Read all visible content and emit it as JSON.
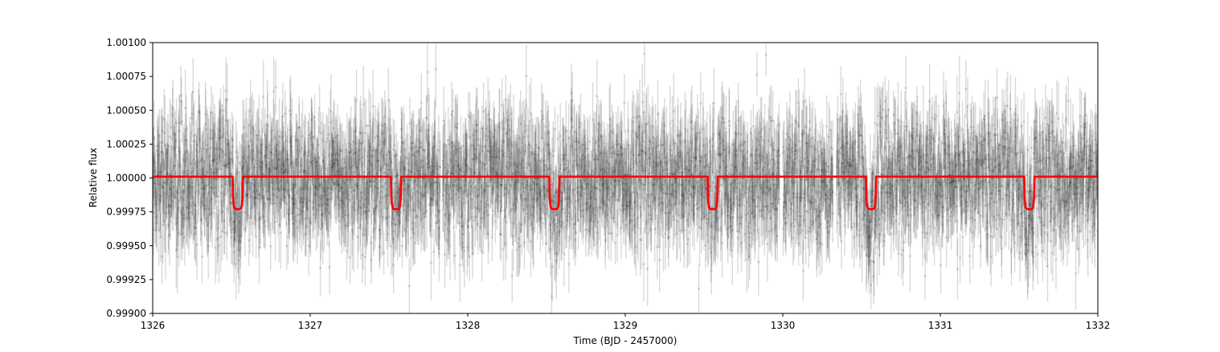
{
  "chart_data": {
    "type": "scatter",
    "title": "",
    "xlabel": "Time (BJD - 2457000)",
    "ylabel": "Relative flux",
    "xlim": [
      1326,
      1332
    ],
    "ylim": [
      0.999,
      1.001
    ],
    "x_ticks": [
      1326,
      1327,
      1328,
      1329,
      1330,
      1331,
      1332
    ],
    "x_tick_labels": [
      "1326",
      "1327",
      "1328",
      "1329",
      "1330",
      "1331",
      "1332"
    ],
    "y_ticks": [
      0.999,
      0.99925,
      0.9995,
      0.99975,
      1.0,
      1.00025,
      1.0005,
      1.00075,
      1.001
    ],
    "y_tick_labels": [
      "0.99900",
      "0.99925",
      "0.99950",
      "0.99975",
      "1.00000",
      "1.00025",
      "1.00050",
      "1.00075",
      "1.00100"
    ],
    "grid": false,
    "legend": "none",
    "series": [
      {
        "kind": "data-with-errorbars",
        "color": "#000000",
        "alpha": 0.15,
        "baseline": 1.0,
        "scatter_std": 0.00024,
        "typical_error": 0.00022,
        "n_points": 4000
      },
      {
        "kind": "transit-model",
        "color": "#ff0000",
        "baseline": 1.00001,
        "transit_depth": 0.00024,
        "transit_midtimes": [
          1326.54,
          1327.545,
          1328.55,
          1329.555,
          1330.56,
          1331.565
        ],
        "transit_duration": 0.065,
        "gaps": [
          [
            1327.825,
            1327.84
          ],
          [
            1329.98,
            1330.0
          ],
          [
            1330.32,
            1330.34
          ]
        ]
      }
    ]
  }
}
